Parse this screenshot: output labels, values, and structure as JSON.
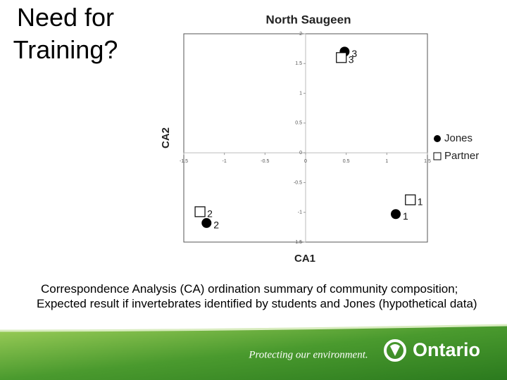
{
  "slide": {
    "title": "Need for Training?",
    "caption": "Correspondence Analysis (CA) ordination summary of community composition; Expected result if invertebrates identified by students and Jones (hypothetical data)",
    "footer_tagline": "Protecting our environment.",
    "footer_brand": "Ontario"
  },
  "chart_data": {
    "type": "scatter",
    "title": "North Saugeen",
    "x_label": "CA1",
    "y_label": "CA2",
    "xlim": [
      -1.5,
      1.5
    ],
    "ylim": [
      -1.5,
      2
    ],
    "xticks": [
      -1.5,
      -1,
      -0.5,
      0,
      0.5,
      1,
      1.5
    ],
    "yticks": [
      -1.5,
      -1,
      -0.5,
      0,
      0.5,
      1,
      1.5,
      2
    ],
    "legend": "right",
    "series": [
      {
        "name": "Jones",
        "color": "#000000",
        "marker": "circle",
        "x": [
          0.48,
          1.11,
          -1.22
        ],
        "values": [
          1.7,
          -1.03,
          -1.18
        ],
        "labels": [
          "3",
          "1",
          "2"
        ]
      },
      {
        "name": "Partner",
        "color": "#000000",
        "marker": "square",
        "x": [
          0.44,
          1.29,
          -1.3
        ],
        "values": [
          1.6,
          -0.79,
          -0.99
        ],
        "labels": [
          "3",
          "1",
          "2"
        ]
      }
    ]
  }
}
